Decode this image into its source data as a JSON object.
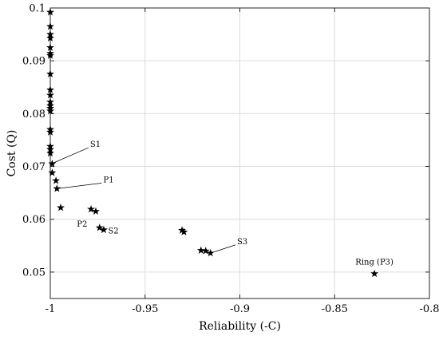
{
  "chart_data": {
    "type": "scatter",
    "title": "",
    "xlabel": "Reliability (-C)",
    "ylabel": "Cost (Q)",
    "xlim": [
      -1.0,
      -0.8
    ],
    "ylim": [
      0.045,
      0.1
    ],
    "x_ticks": [
      -1.0,
      -0.95,
      -0.9,
      -0.85,
      -0.8
    ],
    "x_tick_labels": [
      "-1",
      "-0.95",
      "-0.9",
      "-0.85",
      "-0.8"
    ],
    "y_ticks": [
      0.05,
      0.06,
      0.07,
      0.08,
      0.09,
      0.1
    ],
    "y_tick_labels": [
      "0.05",
      "0.06",
      "0.07",
      "0.08",
      "0.09",
      "0.1"
    ],
    "grid": true,
    "marker": "star",
    "marker_color": "#000000",
    "points": [
      {
        "x": -1.0,
        "y": 0.0992
      },
      {
        "x": -1.0,
        "y": 0.0965
      },
      {
        "x": -1.0,
        "y": 0.095
      },
      {
        "x": -1.0,
        "y": 0.0943
      },
      {
        "x": -1.0,
        "y": 0.0925
      },
      {
        "x": -1.0,
        "y": 0.0914
      },
      {
        "x": -1.0,
        "y": 0.091
      },
      {
        "x": -1.0,
        "y": 0.0875
      },
      {
        "x": -1.0,
        "y": 0.0845
      },
      {
        "x": -1.0,
        "y": 0.0835
      },
      {
        "x": -1.0,
        "y": 0.0822
      },
      {
        "x": -1.0,
        "y": 0.0815
      },
      {
        "x": -1.0,
        "y": 0.081
      },
      {
        "x": -1.0,
        "y": 0.0805
      },
      {
        "x": -1.0,
        "y": 0.077
      },
      {
        "x": -1.0,
        "y": 0.0765
      },
      {
        "x": -1.0,
        "y": 0.0738
      },
      {
        "x": -1.0,
        "y": 0.0732
      },
      {
        "x": -1.0,
        "y": 0.0725
      },
      {
        "x": -0.999,
        "y": 0.0705
      },
      {
        "x": -0.999,
        "y": 0.0688
      },
      {
        "x": -0.997,
        "y": 0.0673
      },
      {
        "x": -0.9965,
        "y": 0.0658
      },
      {
        "x": -0.9945,
        "y": 0.0622
      },
      {
        "x": -0.9785,
        "y": 0.0619
      },
      {
        "x": -0.976,
        "y": 0.0615
      },
      {
        "x": -0.974,
        "y": 0.0584
      },
      {
        "x": -0.9718,
        "y": 0.058
      },
      {
        "x": -0.9305,
        "y": 0.0579
      },
      {
        "x": -0.9295,
        "y": 0.0576
      },
      {
        "x": -0.9205,
        "y": 0.0541
      },
      {
        "x": -0.918,
        "y": 0.054
      },
      {
        "x": -0.9155,
        "y": 0.0536
      },
      {
        "x": -0.829,
        "y": 0.0497
      }
    ],
    "annotations": [
      {
        "text": "S1",
        "point": [
          -0.9995,
          0.0705
        ],
        "label_at": [
          -0.979,
          0.0737
        ],
        "anchor": "start"
      },
      {
        "text": "P1",
        "point": [
          -0.9965,
          0.0658
        ],
        "label_at": [
          -0.972,
          0.067
        ],
        "anchor": "start"
      },
      {
        "text": "P2",
        "point": [
          -0.974,
          0.0584
        ],
        "label_at": [
          -0.9805,
          0.0586
        ],
        "anchor": "end"
      },
      {
        "text": "S2",
        "point": [
          -0.9718,
          0.058
        ],
        "label_at": [
          -0.9695,
          0.0573
        ],
        "anchor": "start"
      },
      {
        "text": "S3",
        "point": [
          -0.9155,
          0.0536
        ],
        "label_at": [
          -0.9015,
          0.0553
        ],
        "anchor": "start"
      },
      {
        "text": "Ring (P3)",
        "point": [
          -0.829,
          0.0497
        ],
        "label_at": [
          -0.829,
          0.0514
        ],
        "anchor": "middle"
      }
    ]
  }
}
